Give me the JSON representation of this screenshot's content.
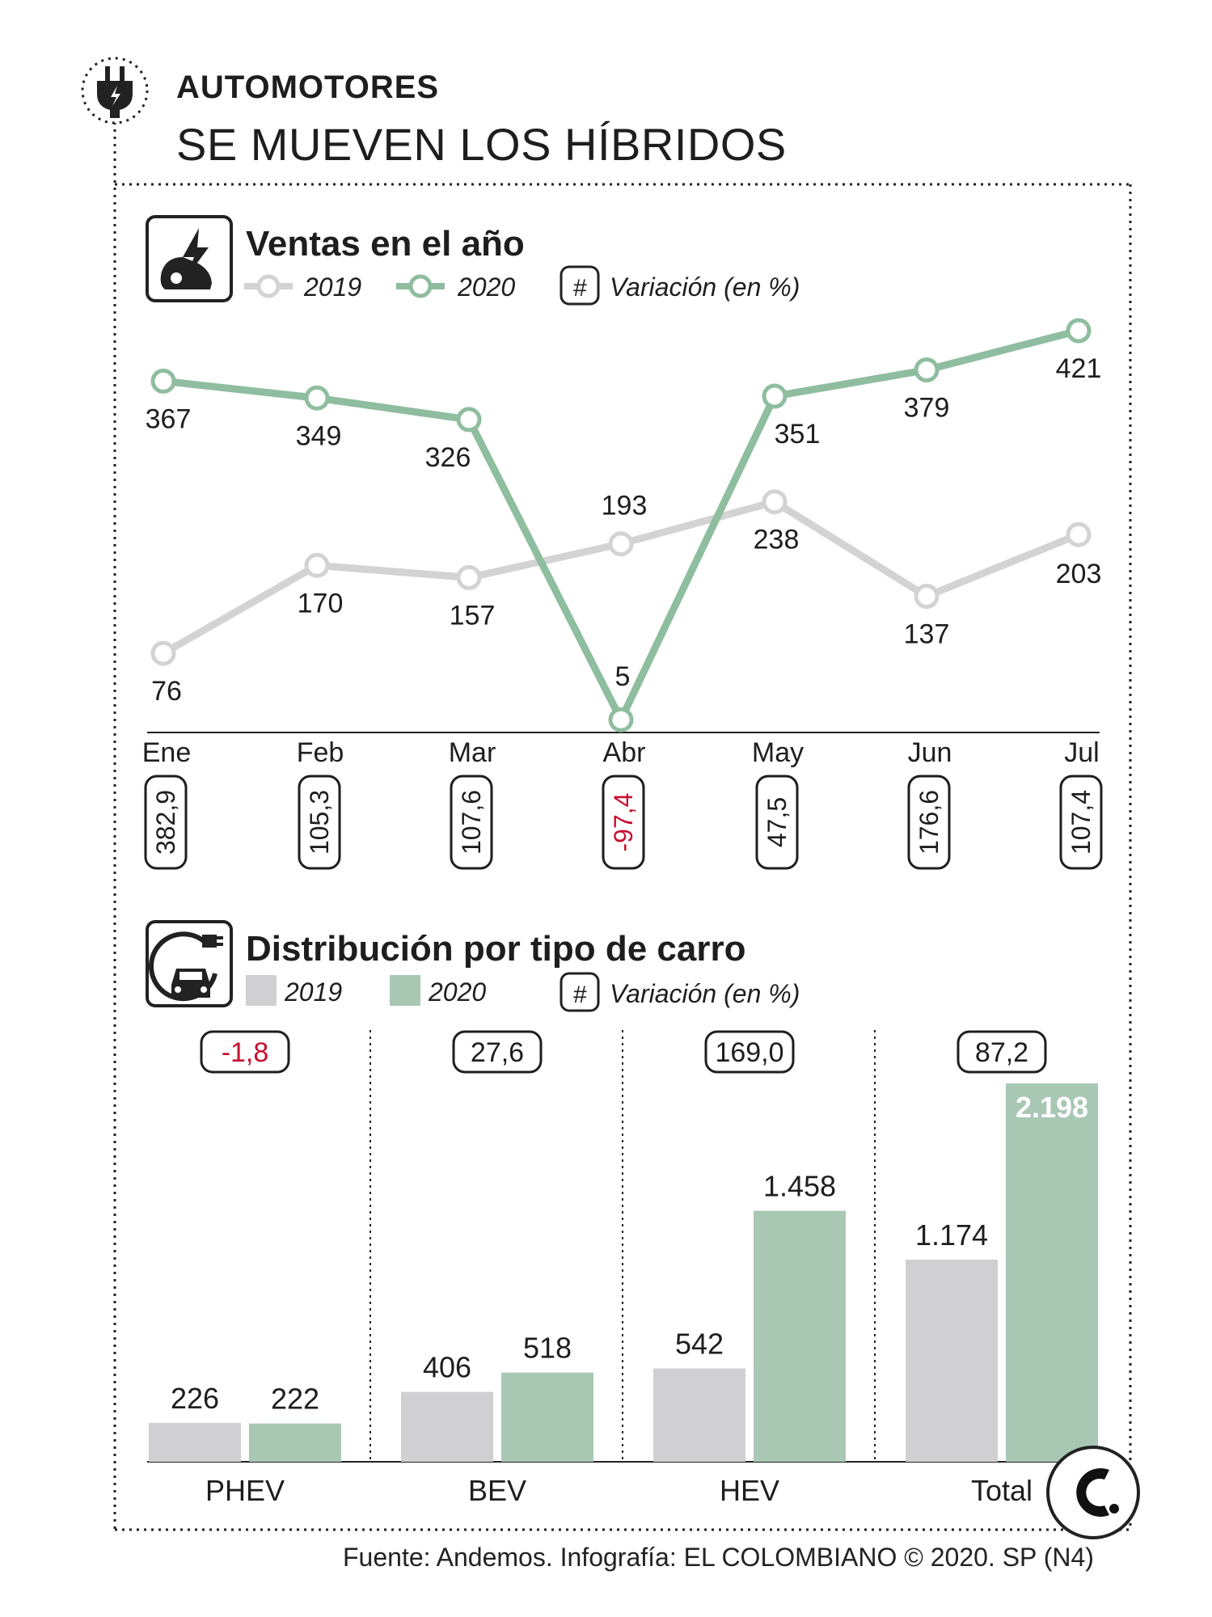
{
  "header": {
    "kicker": "AUTOMOTORES",
    "title": "SE MUEVEN LOS HÍBRIDOS"
  },
  "colors": {
    "c2019": "#d0d0d2",
    "c2020": "#a8c8b4",
    "line2019": "#d3d3d3",
    "line2020": "#8fbd9f",
    "negative": "#c8102e",
    "ink": "#1e1e1e"
  },
  "icons": {
    "header": "plug-icon",
    "sales": "car-lightning-icon",
    "distribution": "electric-car-plug-icon",
    "brand": "el-colombiano-logo"
  },
  "chart_data": [
    {
      "type": "line",
      "title": "Ventas en el año",
      "legend": [
        "2019",
        "2020"
      ],
      "legend_note": "#",
      "legend_note_label": "Variación (en %)",
      "categories": [
        "Ene",
        "Feb",
        "Mar",
        "Abr",
        "May",
        "Jun",
        "Jul"
      ],
      "series": [
        {
          "name": "2019",
          "values": [
            76,
            170,
            157,
            193,
            238,
            137,
            203
          ]
        },
        {
          "name": "2020",
          "values": [
            367,
            349,
            326,
            5,
            351,
            379,
            421
          ]
        }
      ],
      "variation": [
        "382,9",
        "105,3",
        "107,6",
        "-97,4",
        "47,5",
        "176,6",
        "107,4"
      ],
      "ylim": [
        0,
        440
      ],
      "grid": false,
      "legend_position": "top-left"
    },
    {
      "type": "bar",
      "title": "Distribución por tipo de carro",
      "legend": [
        "2019",
        "2020"
      ],
      "legend_note": "#",
      "legend_note_label": "Variación (en %)",
      "categories": [
        "PHEV",
        "BEV",
        "HEV",
        "Total"
      ],
      "series": [
        {
          "name": "2019",
          "values": [
            226,
            406,
            542,
            1174
          ],
          "labels": [
            "226",
            "406",
            "542",
            "1.174"
          ]
        },
        {
          "name": "2020",
          "values": [
            222,
            518,
            1458,
            2198
          ],
          "labels": [
            "222",
            "518",
            "1.458",
            "2.198"
          ]
        }
      ],
      "variation": [
        "-1,8",
        "27,6",
        "169,0",
        "87,2"
      ],
      "ylim": [
        0,
        2198
      ],
      "grid": false,
      "legend_position": "top-left"
    }
  ],
  "footer": {
    "source": "Fuente: Andemos. Infografía: EL COLOMBIANO © 2020. SP (N4)"
  }
}
